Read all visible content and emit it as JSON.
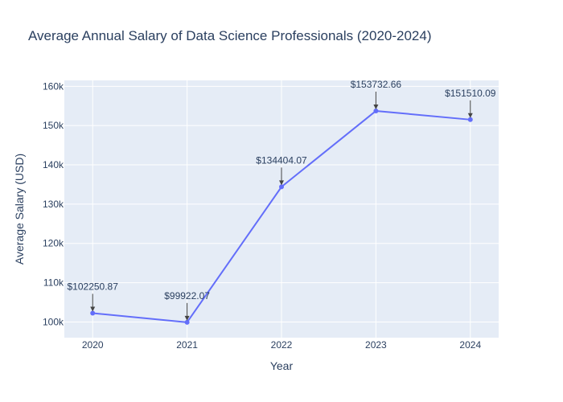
{
  "chart_data": {
    "type": "line",
    "title": "Average Annual Salary of Data Science Professionals (2020-2024)",
    "xlabel": "Year",
    "ylabel": "Average Salary (USD)",
    "x": [
      "2020",
      "2021",
      "2022",
      "2023",
      "2024"
    ],
    "series": [
      {
        "values": [
          102250.87,
          99922.07,
          134404.07,
          153732.66,
          151510.09
        ],
        "color": "#636efa"
      }
    ],
    "annotations": [
      "$102250.87",
      "$99922.07",
      "$134404.07",
      "$153732.66",
      "$151510.09"
    ],
    "yticks": [
      100000,
      110000,
      120000,
      130000,
      140000,
      150000,
      160000
    ],
    "ytick_labels": [
      "100k",
      "110k",
      "120k",
      "130k",
      "140k",
      "150k",
      "160k"
    ],
    "ylim": [
      96000,
      161500
    ],
    "grid": true,
    "legend": "none",
    "colors": {
      "plot_background": "#e5ecf6",
      "gridline": "#ffffff",
      "text": "#2a3f5f",
      "arrow": "#444444"
    }
  }
}
